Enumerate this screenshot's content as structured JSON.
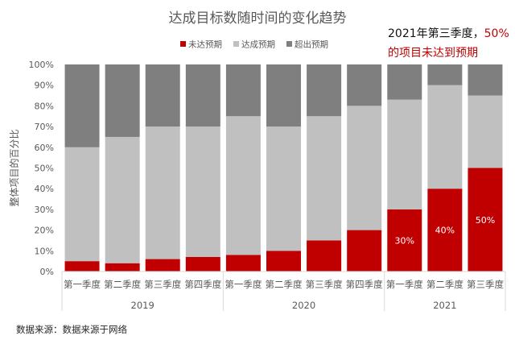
{
  "chart_data": {
    "type": "bar",
    "stacked": true,
    "title": "达成目标数随时间的变化趋势",
    "ylabel": "整体项目的百分比",
    "ylim": [
      0,
      100
    ],
    "ytick_labels": [
      "0%",
      "10%",
      "20%",
      "30%",
      "40%",
      "50%",
      "60%",
      "70%",
      "80%",
      "90%",
      "100%"
    ],
    "categories": [
      "第一季度",
      "第二季度",
      "第三季度",
      "第四季度",
      "第一季度",
      "第二季度",
      "第三季度",
      "第四季度",
      "第一季度",
      "第二季度",
      "第三季度"
    ],
    "groups": [
      {
        "label": "2019",
        "count": 4
      },
      {
        "label": "2020",
        "count": 4
      },
      {
        "label": "2021",
        "count": 3
      }
    ],
    "series": [
      {
        "name": "未达预期",
        "color": "#c00000",
        "values": [
          5,
          4,
          6,
          7,
          8,
          10,
          15,
          20,
          30,
          40,
          50
        ]
      },
      {
        "name": "达成预期",
        "color": "#c0c0c0",
        "values": [
          55,
          61,
          64,
          63,
          67,
          60,
          60,
          60,
          53,
          50,
          35
        ]
      },
      {
        "name": "超出预期",
        "color": "#7f7f7f",
        "values": [
          40,
          35,
          30,
          30,
          25,
          30,
          25,
          20,
          17,
          10,
          15
        ]
      }
    ],
    "data_labels": [
      null,
      null,
      null,
      null,
      null,
      null,
      null,
      null,
      "30%",
      "40%",
      "50%"
    ],
    "legend_position": "top",
    "grid": false
  },
  "callout": {
    "prefix": "2021年第三季度，",
    "highlight": "50%",
    "line2": "的项目未达到预期"
  },
  "source_note": "数据来源：数据来源于网络",
  "colors": {
    "axis": "#d9d9d9",
    "text": "#595959",
    "title": "#595959",
    "accent": "#c00000"
  }
}
